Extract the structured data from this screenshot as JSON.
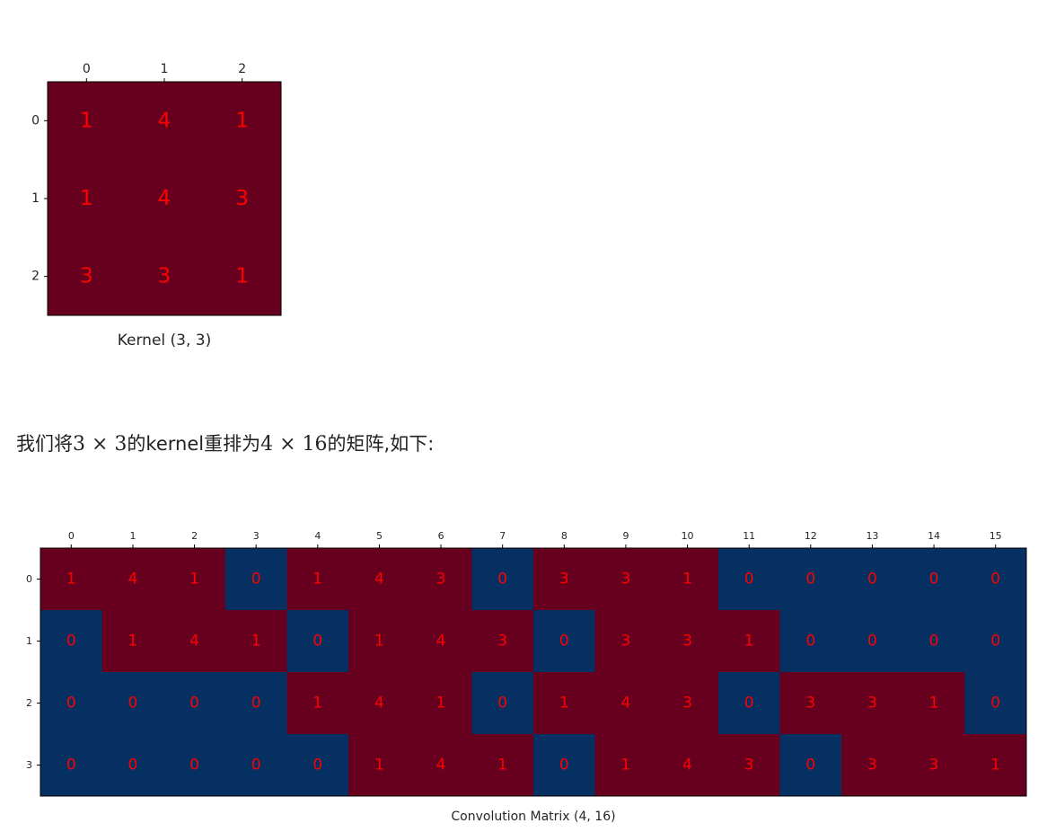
{
  "colors": {
    "high": "#67001f",
    "low": "#053061",
    "annotation": "#ff0000"
  },
  "explanation": {
    "prefix": "我们将",
    "math1": "3 × 3",
    "middle": "的kernel重排为",
    "math2": "4 × 16",
    "suffix": "的矩阵,如下:"
  },
  "chart_data": [
    {
      "type": "heatmap",
      "xlabel": "Kernel (3, 3)",
      "x_ticks": [
        "0",
        "1",
        "2"
      ],
      "y_ticks": [
        "0",
        "1",
        "2"
      ],
      "values": [
        [
          1,
          4,
          1
        ],
        [
          1,
          4,
          3
        ],
        [
          3,
          3,
          1
        ]
      ],
      "colormap": "RdBu_r"
    },
    {
      "type": "heatmap",
      "xlabel": "Convolution Matrix (4, 16)",
      "x_ticks": [
        "0",
        "1",
        "2",
        "3",
        "4",
        "5",
        "6",
        "7",
        "8",
        "9",
        "10",
        "11",
        "12",
        "13",
        "14",
        "15"
      ],
      "y_ticks": [
        "0",
        "1",
        "2",
        "3"
      ],
      "values": [
        [
          1,
          4,
          1,
          0,
          1,
          4,
          3,
          0,
          3,
          3,
          1,
          0,
          0,
          0,
          0,
          0
        ],
        [
          0,
          1,
          4,
          1,
          0,
          1,
          4,
          3,
          0,
          3,
          3,
          1,
          0,
          0,
          0,
          0
        ],
        [
          0,
          0,
          0,
          0,
          1,
          4,
          1,
          0,
          1,
          4,
          3,
          0,
          3,
          3,
          1,
          0
        ],
        [
          0,
          0,
          0,
          0,
          0,
          1,
          4,
          1,
          0,
          1,
          4,
          3,
          0,
          3,
          3,
          1
        ]
      ],
      "colormap": "RdBu_r"
    }
  ]
}
